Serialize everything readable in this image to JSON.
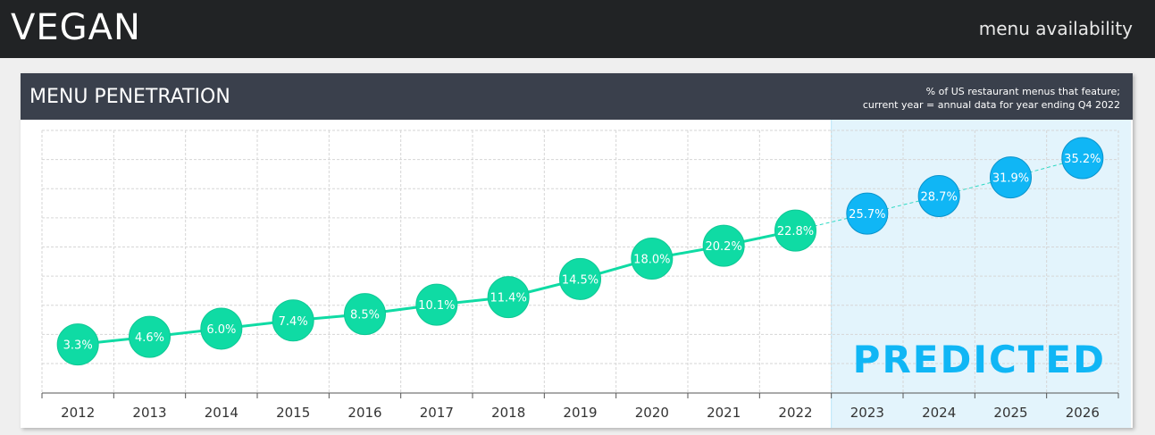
{
  "header": {
    "title": "VEGAN",
    "subtitle": "menu availability"
  },
  "panel": {
    "title": "MENU PENETRATION",
    "note_line1": "% of US restaurant menus that feature;",
    "note_line2": "current year = annual data for year ending Q4 2022"
  },
  "colors": {
    "actual": "#0fdba4",
    "predicted": "#10b6f5",
    "predicted_zone": "#e3f4fc",
    "header_bg": "#212325",
    "panel_header_bg": "#3a404c"
  },
  "chart_data": {
    "type": "line",
    "categories": [
      "2012",
      "2013",
      "2014",
      "2015",
      "2016",
      "2017",
      "2018",
      "2019",
      "2020",
      "2021",
      "2022",
      "2023",
      "2024",
      "2025",
      "2026"
    ],
    "values": [
      3.3,
      4.6,
      6.0,
      7.4,
      8.5,
      10.1,
      11.4,
      14.5,
      18.0,
      20.2,
      22.8,
      25.7,
      28.7,
      31.9,
      35.2
    ],
    "labels": [
      "3.3%",
      "4.6%",
      "6.0%",
      "7.4%",
      "8.5%",
      "10.1%",
      "11.4%",
      "14.5%",
      "18.0%",
      "20.2%",
      "22.8%",
      "25.7%",
      "28.7%",
      "31.9%",
      "35.2%"
    ],
    "predicted_from_index": 11,
    "predicted_label": "PREDICTED",
    "grid": true
  }
}
